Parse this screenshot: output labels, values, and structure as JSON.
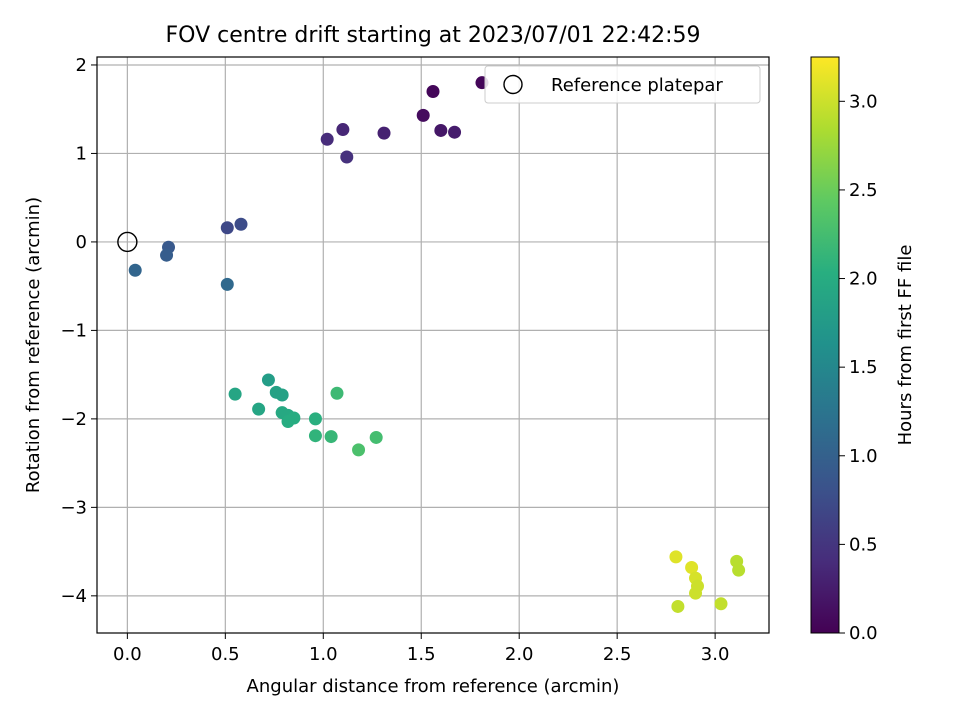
{
  "chart_data": {
    "type": "scatter",
    "title": "FOV centre drift starting at 2023/07/01 22:42:59",
    "xlabel": "Angular distance from reference (arcmin)",
    "ylabel": "Rotation from reference (arcmin)",
    "xlim": [
      -0.155,
      3.275
    ],
    "ylim": [
      -4.42,
      2.09
    ],
    "xticks": [
      0.0,
      0.5,
      1.0,
      1.5,
      2.0,
      2.5,
      3.0
    ],
    "xtick_labels": [
      "0.0",
      "0.5",
      "1.0",
      "1.5",
      "2.0",
      "2.5",
      "3.0"
    ],
    "yticks": [
      2,
      1,
      0,
      -1,
      -2,
      -3,
      -4
    ],
    "ytick_labels": [
      "2",
      "1",
      "0",
      "−1",
      "−2",
      "−3",
      "−4"
    ],
    "grid": true,
    "legend": {
      "entries": [
        "Reference platepar"
      ],
      "placement": "top-right"
    },
    "reference_point": {
      "x": 0.0,
      "y": 0.0
    },
    "colorbar": {
      "label": "Hours from first FF file",
      "colormap": "viridis",
      "range": [
        0.0,
        3.25
      ],
      "ticks": [
        0.0,
        0.5,
        1.0,
        1.5,
        2.0,
        2.5,
        3.0
      ],
      "tick_labels": [
        "0.0",
        "0.5",
        "1.0",
        "1.5",
        "2.0",
        "2.5",
        "3.0"
      ]
    },
    "points": [
      {
        "x": 1.81,
        "y": 1.8,
        "c": 0.05
      },
      {
        "x": 1.56,
        "y": 1.7,
        "c": 0.05
      },
      {
        "x": 1.51,
        "y": 1.43,
        "c": 0.1
      },
      {
        "x": 1.6,
        "y": 1.26,
        "c": 0.2
      },
      {
        "x": 1.67,
        "y": 1.24,
        "c": 0.25
      },
      {
        "x": 1.31,
        "y": 1.23,
        "c": 0.3
      },
      {
        "x": 1.1,
        "y": 1.27,
        "c": 0.35
      },
      {
        "x": 1.02,
        "y": 1.16,
        "c": 0.4
      },
      {
        "x": 1.12,
        "y": 0.96,
        "c": 0.45
      },
      {
        "x": 0.51,
        "y": 0.16,
        "c": 0.7
      },
      {
        "x": 0.58,
        "y": 0.2,
        "c": 0.75
      },
      {
        "x": 0.21,
        "y": -0.06,
        "c": 0.9
      },
      {
        "x": 0.2,
        "y": -0.15,
        "c": 0.95
      },
      {
        "x": 0.04,
        "y": -0.32,
        "c": 1.05
      },
      {
        "x": 0.51,
        "y": -0.48,
        "c": 1.1
      },
      {
        "x": 0.72,
        "y": -1.56,
        "c": 1.8
      },
      {
        "x": 0.76,
        "y": -1.7,
        "c": 1.85
      },
      {
        "x": 0.79,
        "y": -1.73,
        "c": 1.85
      },
      {
        "x": 0.55,
        "y": -1.72,
        "c": 1.9
      },
      {
        "x": 0.67,
        "y": -1.89,
        "c": 1.9
      },
      {
        "x": 0.79,
        "y": -1.93,
        "c": 1.95
      },
      {
        "x": 0.82,
        "y": -1.96,
        "c": 1.95
      },
      {
        "x": 0.85,
        "y": -1.99,
        "c": 2.0
      },
      {
        "x": 0.82,
        "y": -2.03,
        "c": 2.0
      },
      {
        "x": 0.96,
        "y": -2.0,
        "c": 2.05
      },
      {
        "x": 0.96,
        "y": -2.19,
        "c": 2.1
      },
      {
        "x": 1.04,
        "y": -2.2,
        "c": 2.15
      },
      {
        "x": 1.07,
        "y": -1.71,
        "c": 2.2
      },
      {
        "x": 1.27,
        "y": -2.21,
        "c": 2.25
      },
      {
        "x": 1.18,
        "y": -2.35,
        "c": 2.3
      },
      {
        "x": 2.8,
        "y": -3.56,
        "c": 3.1
      },
      {
        "x": 2.88,
        "y": -3.68,
        "c": 3.1
      },
      {
        "x": 2.9,
        "y": -3.8,
        "c": 3.05
      },
      {
        "x": 2.91,
        "y": -3.89,
        "c": 3.0
      },
      {
        "x": 2.9,
        "y": -3.97,
        "c": 3.0
      },
      {
        "x": 2.81,
        "y": -4.12,
        "c": 2.95
      },
      {
        "x": 3.03,
        "y": -4.09,
        "c": 2.95
      },
      {
        "x": 3.11,
        "y": -3.61,
        "c": 2.9
      },
      {
        "x": 3.12,
        "y": -3.71,
        "c": 2.9
      }
    ]
  }
}
